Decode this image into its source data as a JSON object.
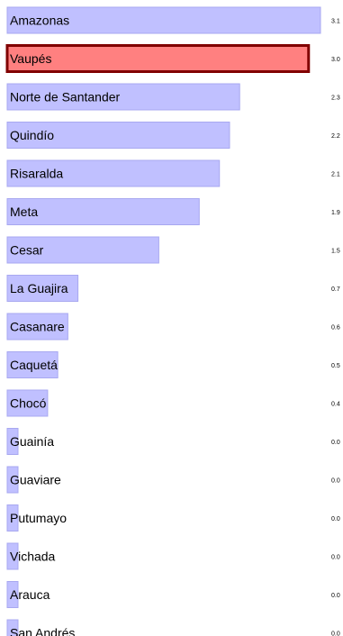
{
  "chart_data": {
    "type": "bar",
    "orientation": "horizontal",
    "categories": [
      "Amazonas",
      "Vaupés",
      "Norte de Santander",
      "Quindío",
      "Risaralda",
      "Meta",
      "Cesar",
      "La Guajira",
      "Casanare",
      "Caquetá",
      "Chocó",
      "Guainía",
      "Guaviare",
      "Putumayo",
      "Vichada",
      "Arauca",
      "San Andrés"
    ],
    "values": [
      3.1,
      3.0,
      2.3,
      2.2,
      2.1,
      1.9,
      1.5,
      0.7,
      0.6,
      0.5,
      0.4,
      0.0,
      0.0,
      0.0,
      0.0,
      0.0,
      0.0
    ],
    "value_labels": [
      "3.1",
      "3.0",
      "2.3",
      "2.2",
      "2.1",
      "1.9",
      "1.5",
      "0.7",
      "0.6",
      "0.5",
      "0.4",
      "0.0",
      "0.0",
      "0.0",
      "0.0",
      "0.0",
      "0.0"
    ],
    "highlighted": "Vaupés",
    "xlim": [
      0,
      3.1
    ],
    "colors": {
      "bar": "#c0c0ff",
      "bar_border": "#a8a8f0",
      "highlight": "#ff8080",
      "highlight_border": "#800000"
    }
  }
}
